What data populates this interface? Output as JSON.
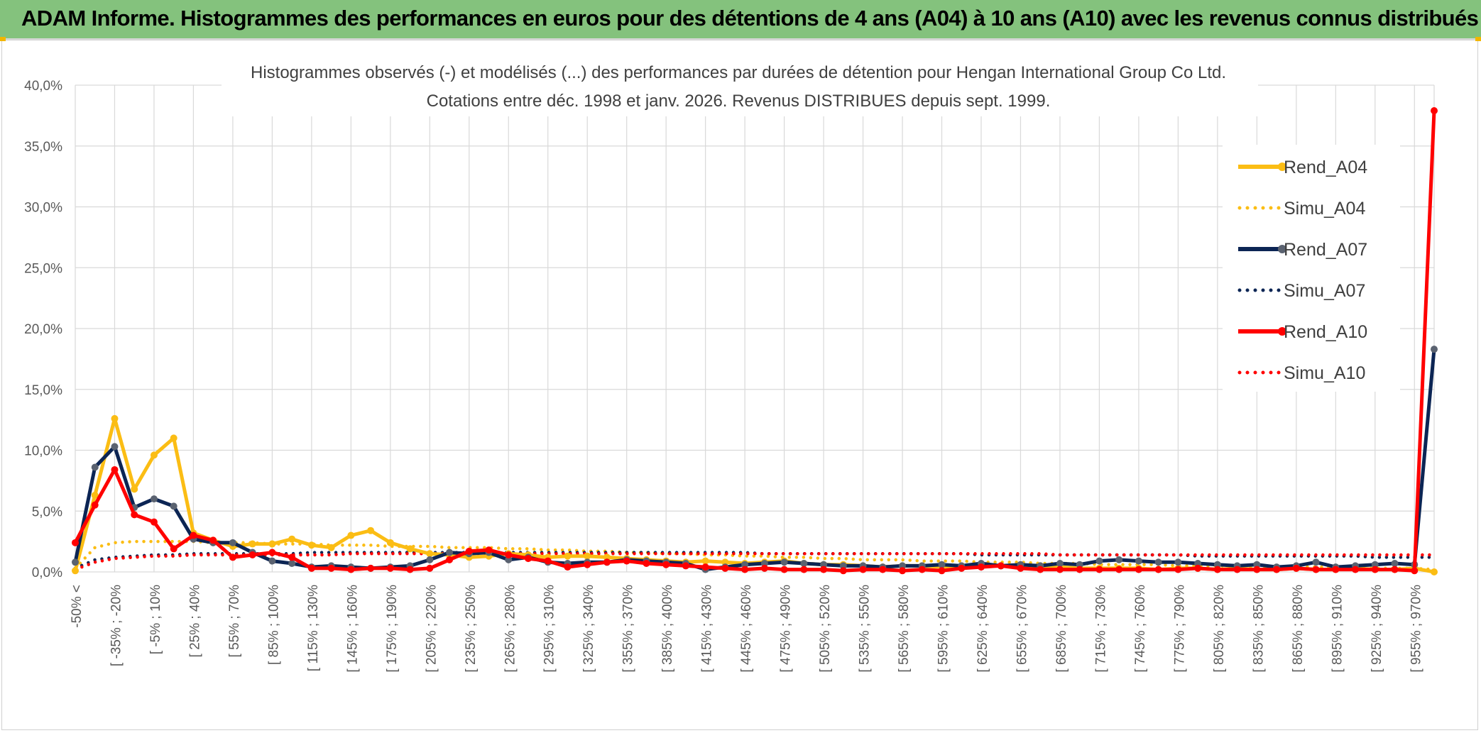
{
  "header": {
    "title": "ADAM Informe. Histogrammes des performances en euros pour des détentions de 4 ans (A04) à 10 ans (A10) avec les revenus connus distribués"
  },
  "colors": {
    "banner": "#84c27d",
    "a04": "#fbbd14",
    "a07": "#0c2554",
    "a07_marker": "#5a6270",
    "a10": "#ff0000",
    "grid": "#d9d9d9",
    "axis_text": "#595959"
  },
  "chart_data": {
    "type": "line",
    "title": "Histogrammes observés (-) et modélisés (...) des performances par durées de détention pour Hengan International Group Co Ltd.",
    "subtitle": "Cotations entre déc. 1998 et janv. 2026. Revenus DISTRIBUES depuis sept. 1999.",
    "xlabel": "",
    "ylabel": "",
    "ylim": [
      0,
      40
    ],
    "yticks": [
      "0,0%",
      "5,0%",
      "10,0%",
      "15,0%",
      "20,0%",
      "25,0%",
      "30,0%",
      "35,0%",
      "40,0%"
    ],
    "grid": true,
    "legend_position": "right",
    "x_tick_labels": [
      "-50% <",
      "[ -35% ; -20%",
      "[ -5% ; 10%",
      "[ 25% ; 40%",
      "[ 55% ; 70%",
      "[ 85% ; 100%",
      "[ 115% ; 130%",
      "[ 145% ; 160%",
      "[ 175% ; 190%",
      "[ 205% ; 220%",
      "[ 235% ; 250%",
      "[ 265% ; 280%",
      "[ 295% ; 310%",
      "[ 325% ; 340%",
      "[ 355% ; 370%",
      "[ 385% ; 400%",
      "[ 415% ; 430%",
      "[ 445% ; 460%",
      "[ 475% ; 490%",
      "[ 505% ; 520%",
      "[ 535% ; 550%",
      "[ 565% ; 580%",
      "[ 595% ; 610%",
      "[ 625% ; 640%",
      "[ 655% ; 670%",
      "[ 685% ; 700%",
      "[ 715% ; 730%",
      "[ 745% ; 760%",
      "[ 775% ; 790%",
      "[ 805% ; 820%",
      "[ 835% ; 850%",
      "[ 865% ; 880%",
      "[ 895% ; 910%",
      "[ 925% ; 940%",
      "[ 955% ; 970%"
    ],
    "n_points": 70,
    "series": [
      {
        "name": "Rend_A04",
        "style": "solid",
        "color": "#fbbd14",
        "marker": true,
        "values": [
          0.1,
          6.3,
          12.6,
          6.8,
          9.6,
          11.0,
          3.2,
          2.6,
          2.1,
          2.3,
          2.3,
          2.7,
          2.2,
          2.0,
          3.0,
          3.4,
          2.4,
          1.9,
          1.5,
          1.4,
          1.2,
          1.3,
          1.5,
          1.4,
          1.2,
          1.3,
          1.3,
          1.2,
          1.1,
          1.0,
          0.9,
          0.8,
          0.9,
          0.8,
          0.7,
          0.8,
          0.9,
          0.7,
          0.6,
          0.6,
          0.5,
          0.4,
          0.5,
          0.5,
          0.4,
          0.5,
          0.6,
          0.5,
          0.4,
          0.5,
          0.4,
          0.3,
          0.3,
          0.3,
          0.3,
          0.2,
          0.3,
          0.3,
          0.2,
          0.3,
          0.2,
          0.2,
          0.3,
          0.2,
          0.2,
          0.3,
          0.2,
          0.2,
          0.3,
          0.0
        ]
      },
      {
        "name": "Simu_A04",
        "style": "dotted",
        "color": "#fbbd14",
        "marker": false,
        "values": [
          0.3,
          2.0,
          2.4,
          2.5,
          2.5,
          2.5,
          2.5,
          2.4,
          2.4,
          2.4,
          2.3,
          2.3,
          2.3,
          2.2,
          2.2,
          2.2,
          2.1,
          2.1,
          2.1,
          2.0,
          2.0,
          2.0,
          1.9,
          1.9,
          1.8,
          1.8,
          1.7,
          1.7,
          1.6,
          1.6,
          1.5,
          1.5,
          1.4,
          1.4,
          1.3,
          1.3,
          1.2,
          1.2,
          1.1,
          1.1,
          1.0,
          1.0,
          1.0,
          0.9,
          0.9,
          0.9,
          0.8,
          0.8,
          0.8,
          0.7,
          0.7,
          0.7,
          0.6,
          0.6,
          0.6,
          0.6,
          0.5,
          0.5,
          0.5,
          0.5,
          0.4,
          0.4,
          0.4,
          0.4,
          0.4,
          0.3,
          0.3,
          0.3,
          0.3,
          0.2
        ]
      },
      {
        "name": "Rend_A07",
        "style": "solid",
        "color": "#0c2554",
        "marker": true,
        "values": [
          0.8,
          8.6,
          10.3,
          5.3,
          6.0,
          5.4,
          2.7,
          2.4,
          2.4,
          1.6,
          0.9,
          0.7,
          0.4,
          0.5,
          0.4,
          0.3,
          0.4,
          0.5,
          1.0,
          1.6,
          1.5,
          1.6,
          1.0,
          1.2,
          0.8,
          0.7,
          0.8,
          0.8,
          1.0,
          0.9,
          0.8,
          0.7,
          0.2,
          0.4,
          0.6,
          0.7,
          0.8,
          0.7,
          0.6,
          0.5,
          0.5,
          0.4,
          0.5,
          0.5,
          0.6,
          0.5,
          0.7,
          0.5,
          0.6,
          0.5,
          0.7,
          0.6,
          0.9,
          1.0,
          0.9,
          0.8,
          0.8,
          0.7,
          0.6,
          0.5,
          0.6,
          0.4,
          0.5,
          0.8,
          0.4,
          0.5,
          0.6,
          0.7,
          0.6,
          18.3
        ]
      },
      {
        "name": "Simu_A07",
        "style": "dotted",
        "color": "#0c2554",
        "marker": false,
        "values": [
          0.3,
          1.0,
          1.2,
          1.3,
          1.4,
          1.4,
          1.5,
          1.5,
          1.5,
          1.5,
          1.5,
          1.5,
          1.6,
          1.6,
          1.6,
          1.6,
          1.6,
          1.6,
          1.6,
          1.6,
          1.6,
          1.6,
          1.6,
          1.6,
          1.6,
          1.6,
          1.6,
          1.6,
          1.6,
          1.6,
          1.6,
          1.6,
          1.6,
          1.6,
          1.6,
          1.5,
          1.5,
          1.5,
          1.5,
          1.5,
          1.5,
          1.5,
          1.5,
          1.5,
          1.5,
          1.5,
          1.4,
          1.4,
          1.4,
          1.4,
          1.4,
          1.4,
          1.4,
          1.4,
          1.4,
          1.4,
          1.4,
          1.3,
          1.3,
          1.3,
          1.3,
          1.3,
          1.3,
          1.3,
          1.3,
          1.3,
          1.2,
          1.2,
          1.2,
          1.2
        ]
      },
      {
        "name": "Rend_A10",
        "style": "solid",
        "color": "#ff0000",
        "marker": true,
        "values": [
          2.4,
          5.5,
          8.4,
          4.7,
          4.1,
          1.9,
          3.0,
          2.6,
          1.2,
          1.4,
          1.6,
          1.2,
          0.3,
          0.3,
          0.2,
          0.3,
          0.3,
          0.2,
          0.3,
          1.0,
          1.7,
          1.8,
          1.4,
          1.1,
          0.9,
          0.4,
          0.6,
          0.8,
          0.9,
          0.7,
          0.6,
          0.5,
          0.4,
          0.3,
          0.2,
          0.3,
          0.2,
          0.2,
          0.2,
          0.1,
          0.2,
          0.2,
          0.1,
          0.2,
          0.1,
          0.3,
          0.4,
          0.5,
          0.3,
          0.2,
          0.2,
          0.2,
          0.2,
          0.2,
          0.2,
          0.2,
          0.2,
          0.3,
          0.2,
          0.2,
          0.2,
          0.2,
          0.3,
          0.2,
          0.2,
          0.2,
          0.2,
          0.2,
          0.1,
          37.9
        ]
      },
      {
        "name": "Simu_A10",
        "style": "dotted",
        "color": "#ff0000",
        "marker": false,
        "values": [
          0.2,
          0.8,
          1.1,
          1.2,
          1.3,
          1.3,
          1.4,
          1.4,
          1.4,
          1.4,
          1.4,
          1.4,
          1.4,
          1.4,
          1.5,
          1.5,
          1.5,
          1.5,
          1.5,
          1.5,
          1.5,
          1.5,
          1.5,
          1.5,
          1.5,
          1.5,
          1.5,
          1.5,
          1.5,
          1.5,
          1.5,
          1.5,
          1.5,
          1.5,
          1.5,
          1.5,
          1.5,
          1.5,
          1.5,
          1.5,
          1.5,
          1.5,
          1.5,
          1.5,
          1.5,
          1.5,
          1.5,
          1.5,
          1.5,
          1.5,
          1.4,
          1.4,
          1.4,
          1.4,
          1.4,
          1.4,
          1.4,
          1.4,
          1.4,
          1.4,
          1.4,
          1.4,
          1.4,
          1.4,
          1.4,
          1.4,
          1.4,
          1.4,
          1.4,
          1.4
        ]
      }
    ]
  }
}
